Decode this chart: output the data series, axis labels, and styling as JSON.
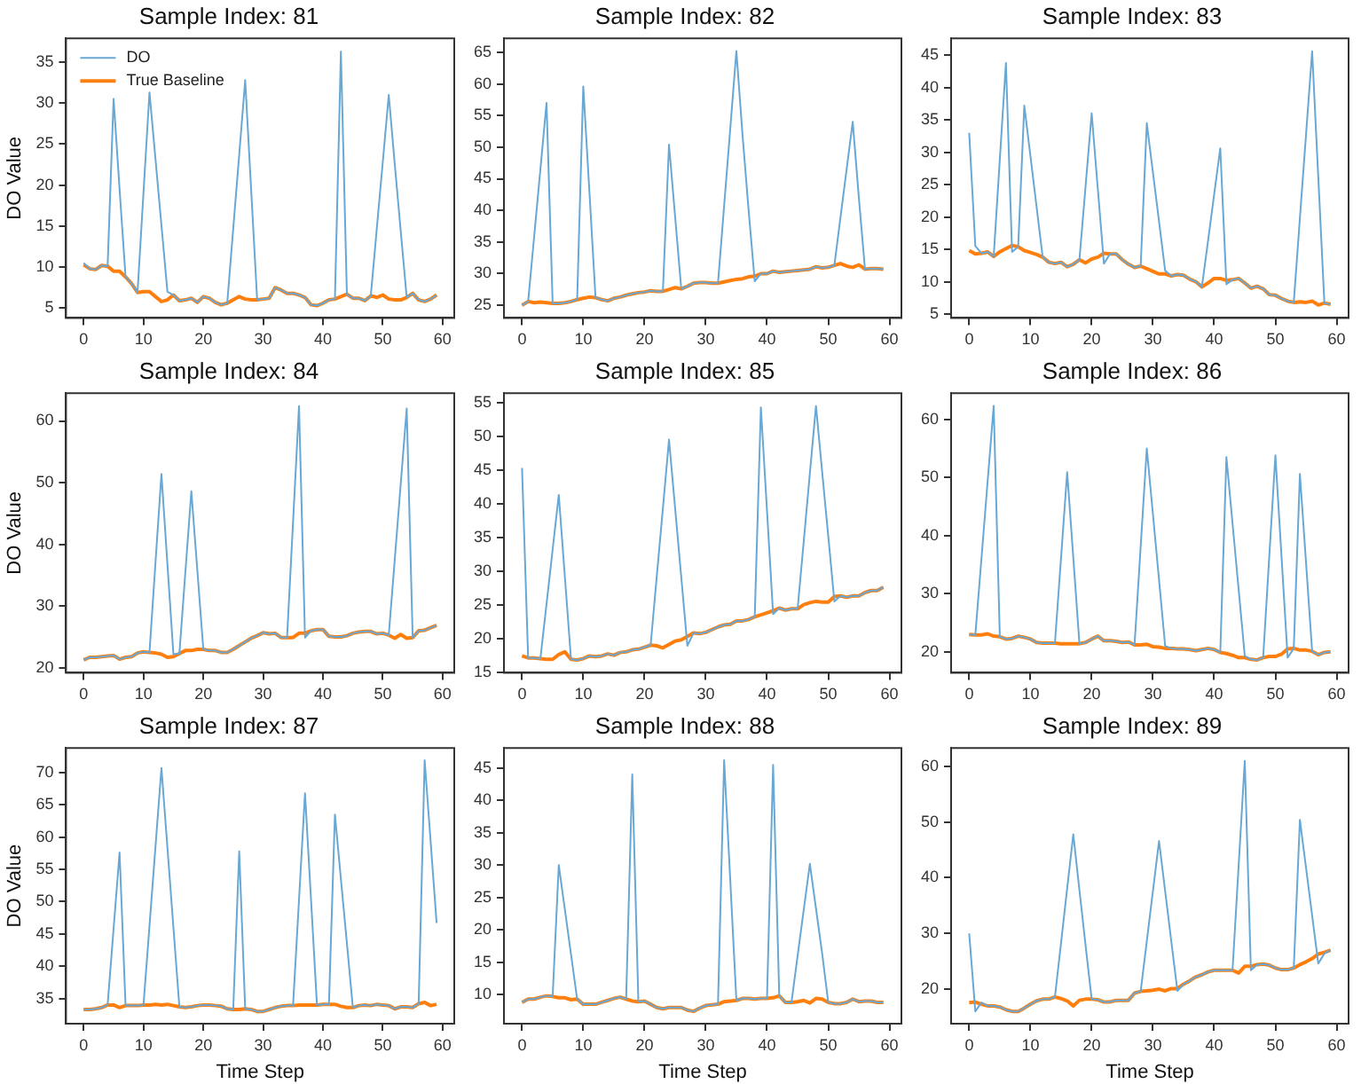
{
  "chart_data": [
    {
      "type": "line",
      "title": "Sample Index: 81",
      "ylabel": "DO Value",
      "legend": "top left",
      "marker": "none",
      "x": [
        0,
        1,
        2,
        3,
        4,
        5,
        6,
        7,
        8,
        9,
        10,
        11,
        12,
        13,
        14,
        15,
        16,
        17,
        18,
        19,
        20,
        21,
        22,
        23,
        24,
        25,
        26,
        27,
        28,
        29,
        30,
        31,
        32,
        33,
        34,
        35,
        36,
        37,
        38,
        39,
        40,
        41,
        42,
        43,
        44,
        45,
        46,
        47,
        48,
        49,
        50,
        51,
        52,
        53,
        54,
        55,
        56,
        57,
        58,
        59
      ],
      "xlim": [
        -2.95,
        61.95
      ],
      "xticks": [
        0,
        10,
        20,
        30,
        40,
        50,
        60
      ],
      "ylim": [
        3.8,
        37.9
      ],
      "yticks": [
        5,
        10,
        15,
        20,
        25,
        30,
        35
      ],
      "series": [
        {
          "name": "DO",
          "color": "#69a7d4",
          "values": [
            10.5,
            9.8,
            9.7,
            10.2,
            10.1,
            30.5,
            19.5,
            8.8,
            8.0,
            6.9,
            19.1,
            31.3,
            23.2,
            15.1,
            7.0,
            6.6,
            5.9,
            6.0,
            6.2,
            5.7,
            6.4,
            6.2,
            5.7,
            5.4,
            5.6,
            14.7,
            23.7,
            32.8,
            19.4,
            6.0,
            6.1,
            6.2,
            7.5,
            7.2,
            6.8,
            6.8,
            6.6,
            6.3,
            5.4,
            5.3,
            5.6,
            6.0,
            6.1,
            36.3,
            6.7,
            6.2,
            6.2,
            5.9,
            6.5,
            14.7,
            22.8,
            31.0,
            22.6,
            14.4,
            6.3,
            6.8,
            6.0,
            5.8,
            6.1,
            6.6
          ]
        },
        {
          "name": "True Baseline",
          "color": "#ff7f0e",
          "values": [
            10.3,
            9.8,
            9.7,
            10.2,
            10.1,
            9.5,
            9.5,
            8.8,
            8.0,
            6.9,
            7.0,
            7.0,
            6.4,
            5.8,
            6.0,
            6.6,
            5.9,
            6.0,
            6.2,
            5.7,
            6.4,
            6.2,
            5.7,
            5.4,
            5.6,
            6.0,
            6.4,
            6.1,
            6.0,
            6.0,
            6.1,
            6.2,
            7.5,
            7.2,
            6.8,
            6.8,
            6.6,
            6.3,
            5.4,
            5.3,
            5.6,
            6.0,
            6.1,
            6.4,
            6.7,
            6.2,
            6.2,
            5.9,
            6.5,
            6.3,
            6.6,
            6.1,
            6.0,
            6.0,
            6.3,
            6.8,
            6.0,
            5.8,
            6.1,
            6.6
          ]
        }
      ]
    },
    {
      "type": "line",
      "title": "Sample Index: 82",
      "marker": "none",
      "x": [
        0,
        1,
        2,
        3,
        4,
        5,
        6,
        7,
        8,
        9,
        10,
        11,
        12,
        13,
        14,
        15,
        16,
        17,
        18,
        19,
        20,
        21,
        22,
        23,
        24,
        25,
        26,
        27,
        28,
        29,
        30,
        31,
        32,
        33,
        34,
        35,
        36,
        37,
        38,
        39,
        40,
        41,
        42,
        43,
        44,
        45,
        46,
        47,
        48,
        49,
        50,
        51,
        52,
        53,
        54,
        55,
        56,
        57,
        58,
        59
      ],
      "xlim": [
        -2.95,
        61.95
      ],
      "xticks": [
        0,
        10,
        20,
        30,
        40,
        50,
        60
      ],
      "ylim": [
        23,
        67.2
      ],
      "yticks": [
        25,
        30,
        35,
        40,
        45,
        50,
        55,
        60,
        65
      ],
      "series": [
        {
          "color": "#69a7d4",
          "values": [
            25.0,
            25.6,
            36.1,
            46.5,
            57.0,
            25.3,
            25.3,
            25.4,
            25.6,
            25.9,
            59.6,
            43.0,
            26.2,
            25.9,
            25.7,
            26.1,
            26.3,
            26.6,
            26.8,
            27.0,
            27.1,
            27.3,
            27.2,
            27.2,
            50.4,
            39.0,
            27.6,
            28.0,
            28.5,
            28.6,
            28.6,
            28.5,
            28.5,
            40.7,
            52.9,
            65.2,
            52.0,
            40.0,
            28.8,
            30.0,
            30.0,
            30.4,
            30.2,
            30.3,
            30.4,
            30.5,
            30.6,
            30.7,
            31.1,
            30.9,
            31.0,
            31.3,
            38.9,
            46.5,
            54.0,
            42.0,
            30.7,
            30.8,
            30.8,
            30.7
          ]
        },
        {
          "color": "#ff7f0e",
          "values": [
            25.0,
            25.6,
            25.4,
            25.5,
            25.4,
            25.3,
            25.3,
            25.4,
            25.6,
            25.9,
            26.1,
            26.3,
            26.2,
            25.9,
            25.7,
            26.1,
            26.3,
            26.6,
            26.8,
            27.0,
            27.1,
            27.3,
            27.2,
            27.2,
            27.5,
            27.8,
            27.6,
            28.0,
            28.5,
            28.6,
            28.6,
            28.5,
            28.5,
            28.7,
            28.9,
            29.1,
            29.2,
            29.5,
            29.6,
            30.0,
            30.0,
            30.4,
            30.2,
            30.3,
            30.4,
            30.5,
            30.6,
            30.7,
            31.1,
            30.9,
            31.0,
            31.3,
            31.6,
            31.2,
            31.0,
            31.4,
            30.7,
            30.8,
            30.8,
            30.7
          ]
        }
      ]
    },
    {
      "type": "line",
      "title": "Sample Index: 83",
      "marker": "none",
      "x": [
        0,
        1,
        2,
        3,
        4,
        5,
        6,
        7,
        8,
        9,
        10,
        11,
        12,
        13,
        14,
        15,
        16,
        17,
        18,
        19,
        20,
        21,
        22,
        23,
        24,
        25,
        26,
        27,
        28,
        29,
        30,
        31,
        32,
        33,
        34,
        35,
        36,
        37,
        38,
        39,
        40,
        41,
        42,
        43,
        44,
        45,
        46,
        47,
        48,
        49,
        50,
        51,
        52,
        53,
        54,
        55,
        56,
        57,
        58,
        59
      ],
      "xlim": [
        -2.95,
        61.95
      ],
      "xticks": [
        0,
        10,
        20,
        30,
        40,
        50,
        60
      ],
      "ylim": [
        4.4,
        47.6
      ],
      "yticks": [
        5,
        10,
        15,
        20,
        25,
        30,
        35,
        40,
        45
      ],
      "series": [
        {
          "color": "#69a7d4",
          "values": [
            33.0,
            15.5,
            14.4,
            14.6,
            13.9,
            28.9,
            43.8,
            14.6,
            15.4,
            37.2,
            29.4,
            21.6,
            13.8,
            13.0,
            12.8,
            13.0,
            12.3,
            12.7,
            13.4,
            24.7,
            36.0,
            24.4,
            12.8,
            14.3,
            14.3,
            13.4,
            12.7,
            12.2,
            12.4,
            34.5,
            26.9,
            19.3,
            11.7,
            10.9,
            11.1,
            11.0,
            10.4,
            10.0,
            9.2,
            16.3,
            23.5,
            30.6,
            9.6,
            10.3,
            10.5,
            9.8,
            9.0,
            9.3,
            8.9,
            8.0,
            7.9,
            7.4,
            7.0,
            6.8,
            19.8,
            32.7,
            45.6,
            26.2,
            6.7,
            6.5
          ]
        },
        {
          "color": "#ff7f0e",
          "values": [
            14.8,
            14.3,
            14.4,
            14.6,
            13.9,
            14.6,
            15.1,
            15.6,
            15.4,
            14.8,
            14.5,
            14.2,
            13.8,
            13.0,
            12.8,
            13.0,
            12.3,
            12.7,
            13.4,
            12.9,
            13.5,
            13.8,
            14.4,
            14.3,
            14.3,
            13.4,
            12.7,
            12.2,
            12.4,
            12.0,
            11.6,
            11.2,
            11.2,
            10.9,
            11.1,
            11.0,
            10.4,
            10.0,
            9.2,
            9.8,
            10.5,
            10.5,
            10.2,
            10.3,
            10.5,
            9.8,
            9.0,
            9.3,
            8.9,
            8.0,
            7.9,
            7.4,
            7.0,
            6.8,
            6.9,
            6.8,
            7.0,
            6.4,
            6.7,
            6.5
          ]
        }
      ]
    },
    {
      "type": "line",
      "title": "Sample Index: 84",
      "ylabel": "DO Value",
      "marker": "none",
      "x": [
        0,
        1,
        2,
        3,
        4,
        5,
        6,
        7,
        8,
        9,
        10,
        11,
        12,
        13,
        14,
        15,
        16,
        17,
        18,
        19,
        20,
        21,
        22,
        23,
        24,
        25,
        26,
        27,
        28,
        29,
        30,
        31,
        32,
        33,
        34,
        35,
        36,
        37,
        38,
        39,
        40,
        41,
        42,
        43,
        44,
        45,
        46,
        47,
        48,
        49,
        50,
        51,
        52,
        53,
        54,
        55,
        56,
        57,
        58,
        59
      ],
      "xlim": [
        -2.95,
        61.95
      ],
      "xticks": [
        0,
        10,
        20,
        30,
        40,
        50,
        60
      ],
      "ylim": [
        19.2,
        64.5
      ],
      "yticks": [
        20,
        30,
        40,
        50,
        60
      ],
      "series": [
        {
          "color": "#69a7d4",
          "values": [
            21.3,
            21.7,
            21.7,
            21.8,
            21.9,
            22.0,
            21.4,
            21.7,
            21.8,
            22.4,
            22.6,
            22.5,
            37.0,
            51.4,
            36.8,
            22.2,
            22.3,
            35.5,
            48.6,
            35.8,
            23.0,
            22.8,
            22.8,
            22.5,
            22.5,
            23.0,
            23.6,
            24.2,
            24.8,
            25.2,
            25.7,
            25.5,
            25.6,
            24.9,
            24.9,
            43.6,
            62.4,
            24.9,
            26.0,
            26.2,
            26.2,
            25.1,
            25.0,
            25.0,
            25.2,
            25.6,
            25.8,
            25.9,
            25.9,
            25.5,
            25.6,
            25.3,
            37.5,
            49.8,
            62.0,
            24.9,
            26.0,
            26.1,
            26.5,
            26.9
          ]
        },
        {
          "color": "#ff7f0e",
          "values": [
            21.3,
            21.7,
            21.7,
            21.8,
            21.9,
            22.0,
            21.4,
            21.7,
            21.8,
            22.4,
            22.6,
            22.5,
            22.4,
            22.2,
            21.7,
            21.8,
            22.3,
            22.8,
            22.8,
            23.0,
            23.0,
            22.8,
            22.8,
            22.5,
            22.5,
            23.0,
            23.6,
            24.2,
            24.8,
            25.2,
            25.7,
            25.5,
            25.6,
            24.9,
            24.9,
            24.9,
            25.6,
            25.6,
            26.0,
            26.2,
            26.2,
            25.1,
            25.0,
            25.0,
            25.2,
            25.6,
            25.8,
            25.9,
            25.9,
            25.5,
            25.6,
            25.3,
            24.8,
            25.4,
            24.8,
            24.9,
            26.0,
            26.1,
            26.5,
            26.9
          ]
        }
      ]
    },
    {
      "type": "line",
      "title": "Sample Index: 85",
      "marker": "none",
      "x": [
        0,
        1,
        2,
        3,
        4,
        5,
        6,
        7,
        8,
        9,
        10,
        11,
        12,
        13,
        14,
        15,
        16,
        17,
        18,
        19,
        20,
        21,
        22,
        23,
        24,
        25,
        26,
        27,
        28,
        29,
        30,
        31,
        32,
        33,
        34,
        35,
        36,
        37,
        38,
        39,
        40,
        41,
        42,
        43,
        44,
        45,
        46,
        47,
        48,
        49,
        50,
        51,
        52,
        53,
        54,
        55,
        56,
        57,
        58,
        59
      ],
      "xlim": [
        -2.95,
        61.95
      ],
      "xticks": [
        0,
        10,
        20,
        30,
        40,
        50,
        60
      ],
      "ylim": [
        14.9,
        56.4
      ],
      "yticks": [
        15,
        20,
        25,
        30,
        35,
        40,
        45,
        50,
        55
      ],
      "series": [
        {
          "color": "#69a7d4",
          "values": [
            45.3,
            17.1,
            17.1,
            17.0,
            25.1,
            33.2,
            41.3,
            29.1,
            16.9,
            16.8,
            17.0,
            17.4,
            17.3,
            17.4,
            17.7,
            17.5,
            17.9,
            18.0,
            18.3,
            18.4,
            18.7,
            19.0,
            29.2,
            39.3,
            49.5,
            39.3,
            29.1,
            18.9,
            20.8,
            20.7,
            20.9,
            21.3,
            21.7,
            22.0,
            22.1,
            22.6,
            22.6,
            22.8,
            23.2,
            54.3,
            39.0,
            23.6,
            24.5,
            24.2,
            24.4,
            24.4,
            34.4,
            44.5,
            54.5,
            44.8,
            35.2,
            25.5,
            26.3,
            26.1,
            26.3,
            26.3,
            26.8,
            27.1,
            27.1,
            27.6
          ]
        },
        {
          "color": "#ff7f0e",
          "values": [
            17.4,
            17.1,
            17.1,
            17.0,
            16.9,
            16.9,
            17.6,
            18.0,
            16.9,
            16.8,
            17.0,
            17.4,
            17.3,
            17.4,
            17.7,
            17.5,
            17.9,
            18.0,
            18.3,
            18.4,
            18.7,
            19.0,
            18.9,
            18.6,
            19.1,
            19.6,
            19.8,
            20.3,
            20.8,
            20.7,
            20.9,
            21.3,
            21.7,
            22.0,
            22.1,
            22.6,
            22.6,
            22.8,
            23.2,
            23.5,
            23.8,
            24.1,
            24.5,
            24.2,
            24.4,
            24.4,
            25.0,
            25.3,
            25.5,
            25.4,
            25.4,
            26.2,
            26.3,
            26.1,
            26.3,
            26.3,
            26.8,
            27.1,
            27.1,
            27.6
          ]
        }
      ]
    },
    {
      "type": "line",
      "title": "Sample Index: 86",
      "marker": "none",
      "x": [
        0,
        1,
        2,
        3,
        4,
        5,
        6,
        7,
        8,
        9,
        10,
        11,
        12,
        13,
        14,
        15,
        16,
        17,
        18,
        19,
        20,
        21,
        22,
        23,
        24,
        25,
        26,
        27,
        28,
        29,
        30,
        31,
        32,
        33,
        34,
        35,
        36,
        37,
        38,
        39,
        40,
        41,
        42,
        43,
        44,
        45,
        46,
        47,
        48,
        49,
        50,
        51,
        52,
        53,
        54,
        55,
        56,
        57,
        58,
        59
      ],
      "xlim": [
        -2.95,
        61.95
      ],
      "xticks": [
        0,
        10,
        20,
        30,
        40,
        50,
        60
      ],
      "ylim": [
        16.4,
        64.5
      ],
      "yticks": [
        20,
        30,
        40,
        50,
        60
      ],
      "series": [
        {
          "color": "#69a7d4",
          "values": [
            23.0,
            22.9,
            36.0,
            49.2,
            62.3,
            22.6,
            22.2,
            22.3,
            22.7,
            22.5,
            22.2,
            21.6,
            21.5,
            21.5,
            21.5,
            36.2,
            50.9,
            36.2,
            21.4,
            21.6,
            22.2,
            22.7,
            21.9,
            21.9,
            21.8,
            21.6,
            21.7,
            21.2,
            38.1,
            55.0,
            43.7,
            32.4,
            21.0,
            20.6,
            20.5,
            20.5,
            20.4,
            20.2,
            20.4,
            20.6,
            20.4,
            19.9,
            53.5,
            42.1,
            30.7,
            19.3,
            18.7,
            18.6,
            19.0,
            36.4,
            53.8,
            36.4,
            19.0,
            20.6,
            50.6,
            35.4,
            20.1,
            19.5,
            19.9,
            20.0
          ]
        },
        {
          "color": "#ff7f0e",
          "values": [
            23.0,
            22.9,
            22.9,
            23.1,
            22.7,
            22.6,
            22.2,
            22.3,
            22.7,
            22.5,
            22.2,
            21.6,
            21.5,
            21.5,
            21.5,
            21.4,
            21.4,
            21.4,
            21.4,
            21.6,
            22.2,
            22.7,
            21.9,
            21.9,
            21.8,
            21.6,
            21.7,
            21.2,
            21.2,
            21.3,
            20.9,
            20.8,
            20.6,
            20.6,
            20.5,
            20.5,
            20.4,
            20.2,
            20.4,
            20.6,
            20.4,
            19.9,
            19.7,
            19.4,
            19.0,
            19.0,
            18.7,
            18.6,
            19.0,
            19.2,
            19.2,
            19.6,
            20.5,
            20.6,
            20.3,
            20.3,
            20.1,
            19.5,
            19.9,
            20.0
          ]
        }
      ]
    },
    {
      "type": "line",
      "title": "Sample Index: 87",
      "xlabel": "Time Step",
      "ylabel": "DO Value",
      "marker": "none",
      "x": [
        0,
        1,
        2,
        3,
        4,
        5,
        6,
        7,
        8,
        9,
        10,
        11,
        12,
        13,
        14,
        15,
        16,
        17,
        18,
        19,
        20,
        21,
        22,
        23,
        24,
        25,
        26,
        27,
        28,
        29,
        30,
        31,
        32,
        33,
        34,
        35,
        36,
        37,
        38,
        39,
        40,
        41,
        42,
        43,
        44,
        45,
        46,
        47,
        48,
        49,
        50,
        51,
        52,
        53,
        54,
        55,
        56,
        57,
        58,
        59
      ],
      "xlim": [
        -2.95,
        61.95
      ],
      "xticks": [
        0,
        10,
        20,
        30,
        40,
        50,
        60
      ],
      "ylim": [
        31.1,
        73.8
      ],
      "yticks": [
        35,
        40,
        45,
        50,
        55,
        60,
        65,
        70
      ],
      "series": [
        {
          "color": "#69a7d4",
          "values": [
            33.3,
            33.3,
            33.4,
            33.6,
            34.0,
            45.8,
            57.6,
            33.9,
            33.9,
            33.9,
            34.0,
            46.2,
            58.5,
            70.7,
            58.4,
            46.0,
            33.7,
            33.6,
            33.7,
            33.9,
            34.0,
            34.0,
            33.9,
            33.8,
            33.4,
            33.3,
            57.8,
            33.4,
            33.3,
            33.0,
            33.0,
            33.3,
            33.6,
            33.8,
            33.9,
            33.9,
            50.3,
            66.8,
            50.4,
            34.0,
            34.1,
            34.1,
            63.5,
            53.5,
            43.6,
            33.6,
            33.9,
            34.0,
            33.9,
            34.1,
            34.0,
            33.9,
            33.4,
            33.7,
            33.7,
            33.6,
            34.2,
            71.9,
            59.3,
            46.7
          ]
        },
        {
          "color": "#ff7f0e",
          "values": [
            33.3,
            33.3,
            33.4,
            33.6,
            34.0,
            34.0,
            33.6,
            33.9,
            33.9,
            33.9,
            34.0,
            34.0,
            34.1,
            34.0,
            34.1,
            33.9,
            33.7,
            33.6,
            33.7,
            33.9,
            34.0,
            34.0,
            33.9,
            33.8,
            33.4,
            33.3,
            33.3,
            33.4,
            33.3,
            33.0,
            33.0,
            33.3,
            33.6,
            33.8,
            33.9,
            33.9,
            34.0,
            34.0,
            34.0,
            34.0,
            34.1,
            34.1,
            34.1,
            33.8,
            33.6,
            33.6,
            33.9,
            34.0,
            33.9,
            34.1,
            34.0,
            33.9,
            33.4,
            33.7,
            33.7,
            33.6,
            34.2,
            34.4,
            33.9,
            34.1
          ]
        }
      ]
    },
    {
      "type": "line",
      "title": "Sample Index: 88",
      "xlabel": "Time Step",
      "marker": "none",
      "x": [
        0,
        1,
        2,
        3,
        4,
        5,
        6,
        7,
        8,
        9,
        10,
        11,
        12,
        13,
        14,
        15,
        16,
        17,
        18,
        19,
        20,
        21,
        22,
        23,
        24,
        25,
        26,
        27,
        28,
        29,
        30,
        31,
        32,
        33,
        34,
        35,
        36,
        37,
        38,
        39,
        40,
        41,
        42,
        43,
        44,
        45,
        46,
        47,
        48,
        49,
        50,
        51,
        52,
        53,
        54,
        55,
        56,
        57,
        58,
        59
      ],
      "xlim": [
        -2.95,
        61.95
      ],
      "xticks": [
        0,
        10,
        20,
        30,
        40,
        50,
        60
      ],
      "ylim": [
        5.5,
        48.1
      ],
      "yticks": [
        10,
        15,
        20,
        25,
        30,
        35,
        40,
        45
      ],
      "series": [
        {
          "color": "#69a7d4",
          "values": [
            8.8,
            9.3,
            9.3,
            9.6,
            9.8,
            9.7,
            30.0,
            23.1,
            16.2,
            9.3,
            8.5,
            8.5,
            8.5,
            8.8,
            9.1,
            9.4,
            9.6,
            9.3,
            44.0,
            8.9,
            9.0,
            8.5,
            8.0,
            7.8,
            8.0,
            8.0,
            8.0,
            7.6,
            7.4,
            7.9,
            8.3,
            8.4,
            8.5,
            46.2,
            27.7,
            9.1,
            9.4,
            9.4,
            9.3,
            9.4,
            9.4,
            45.5,
            9.8,
            8.8,
            8.8,
            16.0,
            23.1,
            30.2,
            23.3,
            16.4,
            8.8,
            8.6,
            8.6,
            8.8,
            9.3,
            8.9,
            9.0,
            9.0,
            8.8,
            8.8
          ]
        },
        {
          "color": "#ff7f0e",
          "values": [
            8.8,
            9.3,
            9.3,
            9.6,
            9.8,
            9.7,
            9.5,
            9.5,
            9.2,
            9.3,
            8.5,
            8.5,
            8.5,
            8.8,
            9.1,
            9.4,
            9.6,
            9.3,
            9.0,
            8.9,
            9.0,
            8.5,
            8.0,
            7.8,
            8.0,
            8.0,
            8.0,
            7.6,
            7.4,
            7.9,
            8.3,
            8.4,
            8.5,
            8.9,
            9.0,
            9.1,
            9.4,
            9.4,
            9.3,
            9.4,
            9.4,
            9.5,
            9.8,
            8.8,
            8.8,
            8.9,
            9.1,
            8.7,
            9.4,
            9.3,
            8.8,
            8.6,
            8.6,
            8.8,
            9.3,
            8.9,
            9.0,
            9.0,
            8.8,
            8.8
          ]
        }
      ]
    },
    {
      "type": "line",
      "title": "Sample Index: 89",
      "xlabel": "Time Step",
      "marker": "none",
      "x": [
        0,
        1,
        2,
        3,
        4,
        5,
        6,
        7,
        8,
        9,
        10,
        11,
        12,
        13,
        14,
        15,
        16,
        17,
        18,
        19,
        20,
        21,
        22,
        23,
        24,
        25,
        26,
        27,
        28,
        29,
        30,
        31,
        32,
        33,
        34,
        35,
        36,
        37,
        38,
        39,
        40,
        41,
        42,
        43,
        44,
        45,
        46,
        47,
        48,
        49,
        50,
        51,
        52,
        53,
        54,
        55,
        56,
        57,
        58,
        59
      ],
      "xlim": [
        -2.95,
        61.95
      ],
      "xticks": [
        0,
        10,
        20,
        30,
        40,
        50,
        60
      ],
      "ylim": [
        13.8,
        63.3
      ],
      "yticks": [
        20,
        30,
        40,
        50,
        60
      ],
      "series": [
        {
          "color": "#69a7d4",
          "values": [
            30.0,
            16.0,
            17.6,
            17.0,
            17.0,
            16.8,
            16.3,
            16.0,
            16.0,
            16.6,
            17.3,
            17.9,
            18.2,
            18.2,
            18.6,
            28.3,
            38.1,
            47.8,
            37.8,
            27.9,
            18.2,
            18.1,
            17.7,
            17.7,
            18.0,
            18.0,
            18.0,
            19.3,
            19.6,
            28.6,
            37.6,
            46.6,
            37.6,
            28.6,
            19.7,
            20.9,
            21.5,
            22.2,
            22.6,
            23.1,
            23.4,
            23.4,
            23.4,
            23.4,
            42.2,
            61.0,
            23.4,
            24.4,
            24.5,
            24.3,
            23.8,
            23.5,
            23.5,
            23.8,
            50.4,
            41.8,
            33.2,
            24.6,
            26.4,
            27.0
          ]
        },
        {
          "color": "#ff7f0e",
          "values": [
            17.6,
            17.7,
            17.3,
            17.0,
            17.0,
            16.8,
            16.3,
            16.0,
            16.0,
            16.6,
            17.3,
            17.9,
            18.2,
            18.2,
            18.6,
            18.3,
            17.9,
            17.0,
            18.0,
            18.2,
            18.2,
            18.1,
            17.7,
            17.7,
            18.0,
            18.0,
            18.0,
            19.3,
            19.6,
            19.7,
            19.8,
            20.0,
            19.7,
            20.1,
            20.1,
            20.9,
            21.5,
            22.2,
            22.6,
            23.1,
            23.4,
            23.4,
            23.4,
            23.4,
            22.9,
            24.1,
            24.1,
            24.4,
            24.5,
            24.3,
            23.8,
            23.5,
            23.5,
            23.8,
            24.4,
            24.9,
            25.5,
            26.3,
            26.6,
            27.0
          ]
        }
      ]
    }
  ]
}
